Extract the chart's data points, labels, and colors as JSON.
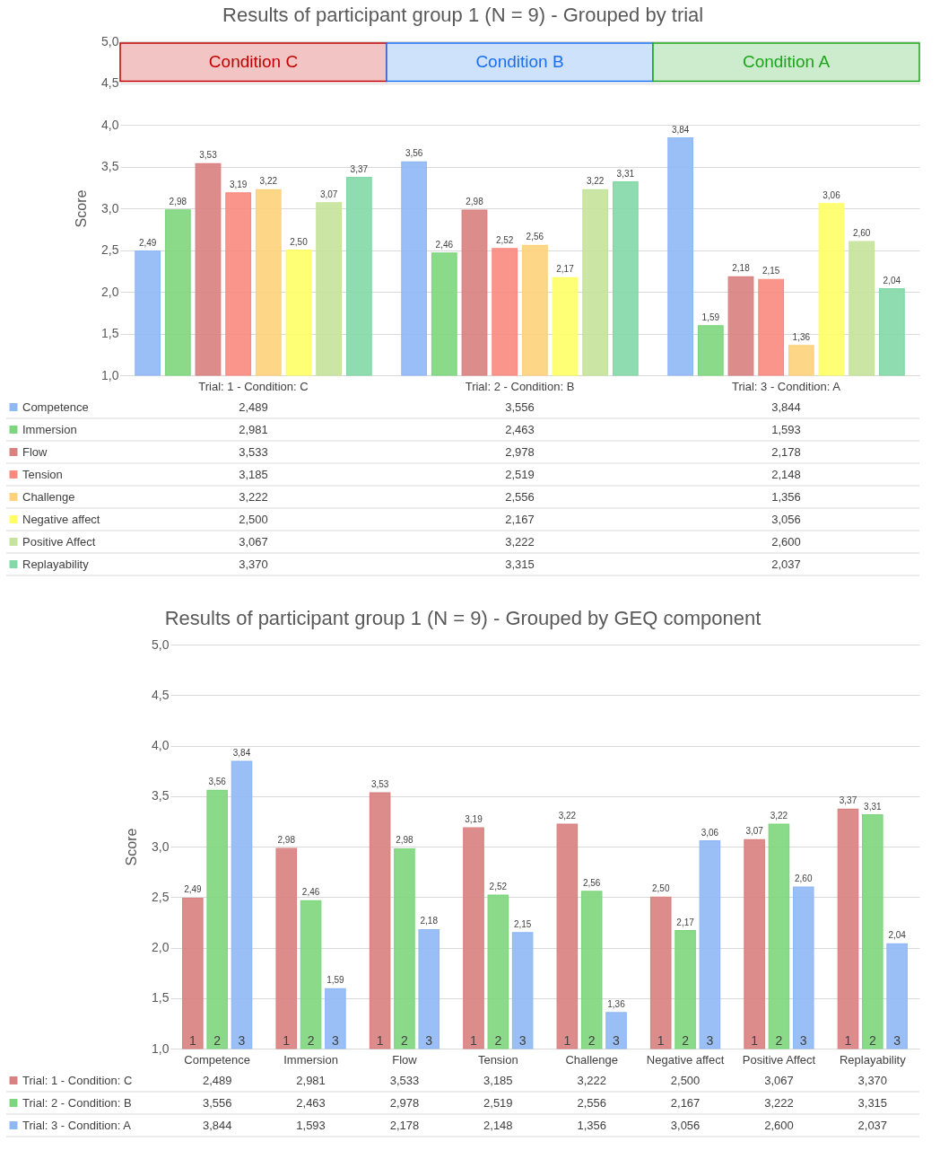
{
  "chart_data": [
    {
      "type": "bar",
      "title": "Results of participant group 1 (N = 9) - Grouped by trial",
      "ylabel": "Score",
      "categories": [
        "Trial: 1 - Condition: C",
        "Trial: 2 - Condition: B",
        "Trial: 3 - Condition: A"
      ],
      "ylim": [
        1,
        5
      ],
      "yticks": [
        {
          "value": 1,
          "label": "1,0"
        },
        {
          "value": 1.5,
          "label": "1,5"
        },
        {
          "value": 2,
          "label": "2,0"
        },
        {
          "value": 2.5,
          "label": "2,5"
        },
        {
          "value": 3,
          "label": "3,0"
        },
        {
          "value": 3.5,
          "label": "3,5"
        },
        {
          "value": 4,
          "label": "4,0"
        },
        {
          "value": 4.5,
          "label": "4,5"
        },
        {
          "value": 5,
          "label": "5,0"
        }
      ],
      "grid": "y",
      "legend": "bottom",
      "data_labels": true,
      "annotations": [
        "Condition C",
        "Condition B",
        "Condition A",
        "2,489",
        "3,556",
        "3,844",
        "2,981",
        "2,463",
        "1,593",
        "3,533",
        "2,978",
        "2,178",
        "3,185",
        "2,519",
        "2,148",
        "3,222",
        "2,556",
        "1,356",
        "2,500",
        "2,167",
        "3,056",
        "3,067",
        "3,222",
        "2,600",
        "3,370",
        "3,315",
        "2,037"
      ],
      "series": [
        {
          "name": "Competence",
          "color": "#8fb8f5",
          "values": [
            2.489,
            3.556,
            3.844
          ],
          "value_labels": [
            "2,49",
            "3,56",
            "3,84"
          ]
        },
        {
          "name": "Immersion",
          "color": "#7dd67d",
          "values": [
            2.981,
            2.463,
            1.593
          ],
          "value_labels": [
            "2,98",
            "2,46",
            "1,59"
          ]
        },
        {
          "name": "Flow",
          "color": "#d98080",
          "values": [
            3.533,
            2.978,
            2.178
          ],
          "value_labels": [
            "3,53",
            "2,98",
            "2,18"
          ]
        },
        {
          "name": "Tension",
          "color": "#fa8a80",
          "values": [
            3.185,
            2.519,
            2.148
          ],
          "value_labels": [
            "3,19",
            "2,52",
            "2,15"
          ]
        },
        {
          "name": "Challenge",
          "color": "#fed27a",
          "values": [
            3.222,
            2.556,
            1.356
          ],
          "value_labels": [
            "3,22",
            "2,56",
            "1,36"
          ]
        },
        {
          "name": "Negative affect",
          "color": "#ffff66",
          "values": [
            2.5,
            2.167,
            3.056
          ],
          "value_labels": [
            "2,50",
            "2,17",
            "3,06"
          ]
        },
        {
          "name": "Positive Affect",
          "color": "#c5e39a",
          "values": [
            3.067,
            3.222,
            2.6
          ],
          "value_labels": [
            "3,07",
            "3,22",
            "2,60"
          ]
        },
        {
          "name": "Replayability",
          "color": "#82d8a6",
          "values": [
            3.37,
            3.315,
            2.037
          ],
          "value_labels": [
            "3,37",
            "3,31",
            "2,04"
          ]
        }
      ]
    },
    {
      "type": "bar",
      "title": "Results of participant group 1 (N = 9) - Grouped by GEQ component",
      "ylabel": "Score",
      "categories": [
        "Competence",
        "Immersion",
        "Flow",
        "Tension",
        "Challenge",
        "Negative affect",
        "Positive Affect",
        "Replayability"
      ],
      "ylim": [
        1,
        5
      ],
      "yticks": [
        {
          "value": 1,
          "label": "1,0"
        },
        {
          "value": 1.5,
          "label": "1,5"
        },
        {
          "value": 2,
          "label": "2,0"
        },
        {
          "value": 2.5,
          "label": "2,5"
        },
        {
          "value": 3,
          "label": "3,0"
        },
        {
          "value": 3.5,
          "label": "3,5"
        },
        {
          "value": 4,
          "label": "4,0"
        },
        {
          "value": 4.5,
          "label": "4,5"
        },
        {
          "value": 5,
          "label": "5,0"
        }
      ],
      "grid": "y",
      "legend": "bottom",
      "data_labels": true,
      "annotations": [
        "1",
        "2",
        "3",
        "2,489",
        "2,981",
        "3,533",
        "3,185",
        "3,222",
        "2,500",
        "3,067",
        "3,370",
        "3,556",
        "2,463",
        "2,978",
        "2,519",
        "2,556",
        "2,167",
        "3,222",
        "3,315",
        "3,844",
        "1,593",
        "2,178",
        "2,148",
        "1,356",
        "3,056",
        "2,600",
        "2,037"
      ],
      "series": [
        {
          "name": "Trial: 1 - Condition: C",
          "color": "#d98080",
          "values": [
            2.489,
            2.981,
            3.533,
            3.185,
            3.222,
            2.5,
            3.067,
            3.37
          ],
          "value_labels": [
            "2,49",
            "2,98",
            "3,53",
            "3,19",
            "3,22",
            "2,50",
            "3,07",
            "3,37"
          ]
        },
        {
          "name": "Trial: 2 - Condition: B",
          "color": "#7dd67d",
          "values": [
            3.556,
            2.463,
            2.978,
            2.519,
            2.556,
            2.167,
            3.222,
            3.315
          ],
          "value_labels": [
            "3,56",
            "2,46",
            "2,98",
            "2,52",
            "2,56",
            "2,17",
            "3,22",
            "3,31"
          ]
        },
        {
          "name": "Trial: 3 - Condition: A",
          "color": "#8fb8f5",
          "values": [
            3.844,
            1.593,
            2.178,
            2.148,
            1.356,
            3.056,
            2.6,
            2.037
          ],
          "value_labels": [
            "3,84",
            "1,59",
            "2,18",
            "2,15",
            "1,36",
            "3,06",
            "2,60",
            "2,04"
          ]
        }
      ]
    }
  ]
}
